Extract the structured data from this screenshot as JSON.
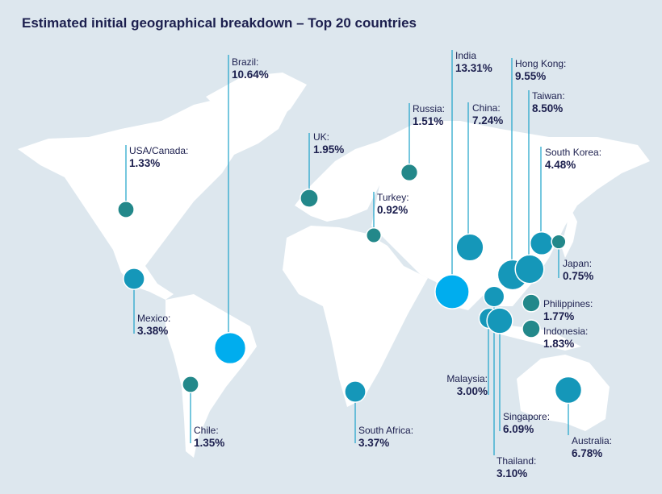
{
  "title": "Estimated initial geographical breakdown – Top 20 countries",
  "colors": {
    "background": "#dde7ee",
    "land": "#ffffff",
    "small": "#23888a",
    "medium": "#1597b9",
    "large": "#00adee",
    "leader": "#1aa2c9",
    "text": "#1c1f4e"
  },
  "countries": [
    {
      "name": "Brazil:",
      "value": "10.64%",
      "pct": 10.64
    },
    {
      "name": "USA/Canada:",
      "value": "1.33%",
      "pct": 1.33
    },
    {
      "name": "Mexico:",
      "value": "3.38%",
      "pct": 3.38
    },
    {
      "name": "Chile:",
      "value": "1.35%",
      "pct": 1.35
    },
    {
      "name": "UK:",
      "value": "1.95%",
      "pct": 1.95
    },
    {
      "name": "Turkey:",
      "value": "0.92%",
      "pct": 0.92
    },
    {
      "name": "Russia:",
      "value": "1.51%",
      "pct": 1.51
    },
    {
      "name": "South Africa:",
      "value": "3.37%",
      "pct": 3.37
    },
    {
      "name": "India",
      "value": "13.31%",
      "pct": 13.31
    },
    {
      "name": "China:",
      "value": "7.24%",
      "pct": 7.24
    },
    {
      "name": "Hong Kong:",
      "value": "9.55%",
      "pct": 9.55
    },
    {
      "name": "Taiwan:",
      "value": "8.50%",
      "pct": 8.5
    },
    {
      "name": "South Korea:",
      "value": "4.48%",
      "pct": 4.48
    },
    {
      "name": "Japan:",
      "value": "0.75%",
      "pct": 0.75
    },
    {
      "name": "Philippines:",
      "value": "1.77%",
      "pct": 1.77
    },
    {
      "name": "Indonesia:",
      "value": "1.83%",
      "pct": 1.83
    },
    {
      "name": "Thailand:",
      "value": "3.10%",
      "pct": 3.1
    },
    {
      "name": "Malaysia:",
      "value": "3.00%",
      "pct": 3.0
    },
    {
      "name": "Singapore:",
      "value": "6.09%",
      "pct": 6.09
    },
    {
      "name": "Australia:",
      "value": "6.78%",
      "pct": 6.78
    }
  ]
}
